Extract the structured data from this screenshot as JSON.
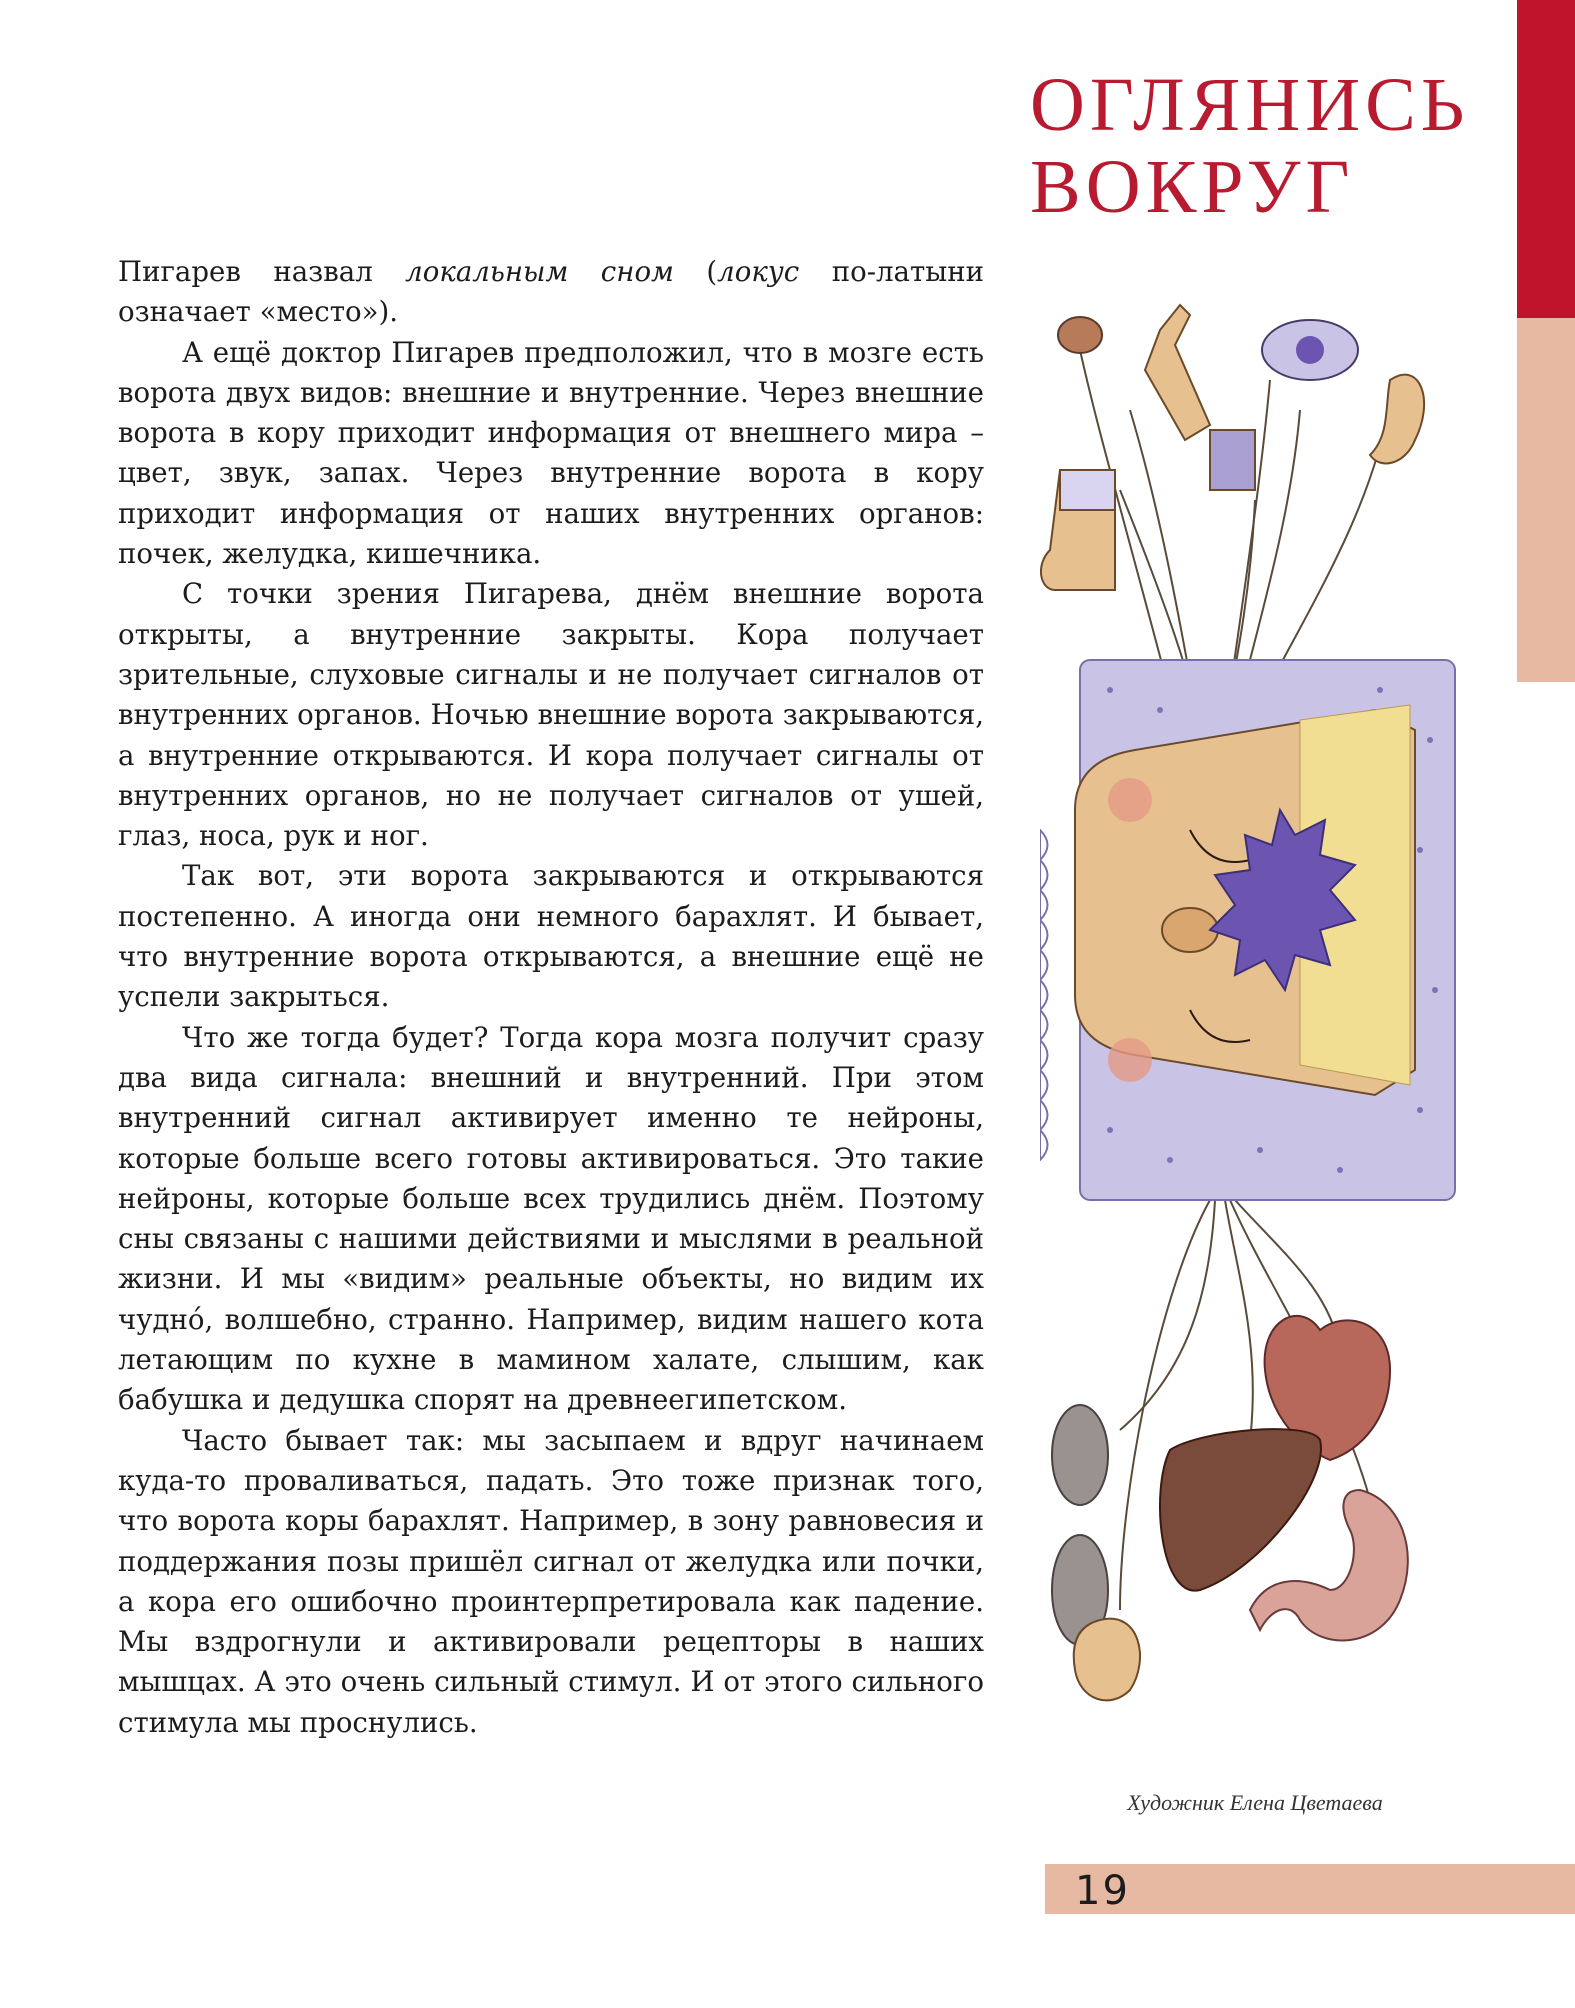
{
  "section_title": {
    "line1": "Оглянись",
    "line2": "вокруг"
  },
  "body": {
    "p1": {
      "a": "Пигарев назвал ",
      "b": "локальным сном",
      "c": " (",
      "d": "локус",
      "e": " по-латыни означает «место»)."
    },
    "p2": "А ещё доктор Пигарев предположил, что в мозге есть ворота двух видов: внешние и внутренние. Через внешние ворота в кору приходит информация от внешнего мира – цвет, звук, запах. Через внутренние ворота в кору приходит информация от наших внутренних органов: почек, желудка, кишечника.",
    "p3": "С точки зрения Пигарева, днём внешние ворота открыты, а внутренние закрыты. Кора получает зрительные, слуховые сигналы и не получает сигналов от внутренних органов. Ночью внешние ворота закрываются, а внутренние открываются. И кора получает сигналы от внутренних органов, но не получает сигналов от ушей, глаз, носа, рук и ног.",
    "p4": "Так вот, эти ворота закрываются и открываются постепенно. А иногда они немного барахлят. И бывает, что внутренние ворота открываются, а внешние ещё не успели закрыться.",
    "p5": "Что же тогда будет? Тогда кора мозга получит сразу два вида сигнала: внешний и внутренний. При этом внутренний сигнал активирует именно те нейроны, которые больше всего готовы активироваться. Это такие нейроны, которые больше всех трудились днём. Поэтому сны связаны с нашими действиями и мыслями в реальной жизни. И мы «видим» реальные объекты, но видим их чудно́, волшебно, странно. Например, видим нашего кота летающим по кухне в мамином халате, слышим, как бабушка и дедушка спорят на древнеегипетском.",
    "p6": "Часто бывает так: мы засыпаем и вдруг начинаем куда-то проваливаться, падать. Это тоже признак того, что ворота коры барахлят. Например, в зону равновесия и поддержания позы пришёл сигнал от желудка или почки, а кора его ошибочно проинтерпретировала как падение. Мы вздрогнули и активировали рецепторы в наших мышцах. А это очень сильный стимул. И от этого сильного стимула мы проснулись."
  },
  "caption": "Художник Елена Цветаева",
  "page_number": "19",
  "colors": {
    "accent_red": "#c0142c",
    "peach": "#e8b9a2",
    "pillow": "#c9c4e6",
    "skin": "#e6c08f",
    "hair": "#f1de93",
    "purple": "#6b55b0"
  }
}
